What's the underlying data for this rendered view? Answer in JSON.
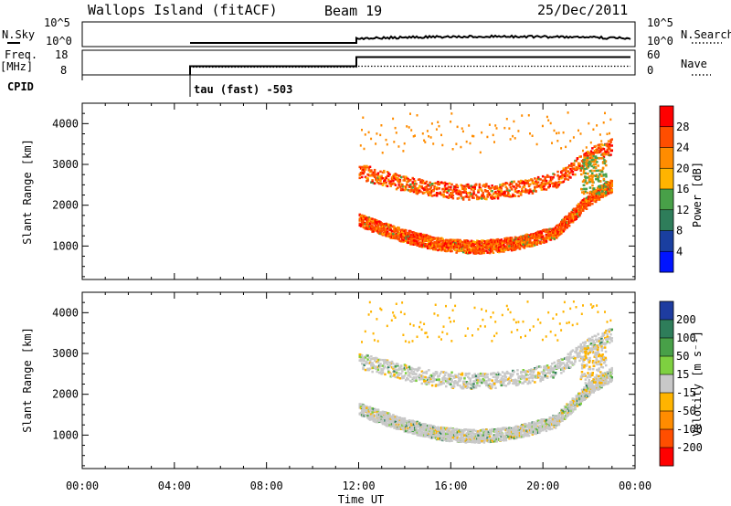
{
  "header": {
    "station": "Wallops Island (fitACF)",
    "beam": "Beam 19",
    "date": "25/Dec/2011"
  },
  "top_panels": {
    "nsky_label": "N.Sky",
    "nsky_ticks": [
      "10^5",
      "10^0"
    ],
    "nsearch_label": "N.Search",
    "nsearch_ticks": [
      "10^5",
      "10^0"
    ],
    "freq_label": "Freq.",
    "freq_unit": "[MHz]",
    "freq_ticks": [
      "18",
      "8"
    ],
    "nave_label": "Nave",
    "nave_ticks": [
      "60",
      "0"
    ],
    "cpid_label": "CPID",
    "cpid_text": "tau (fast) -503"
  },
  "chart_data": [
    {
      "type": "heatmap",
      "panel": "power",
      "ylabel": "Slant Range [km]",
      "xlabel": "Time UT",
      "x_ticks": [
        "00:00",
        "04:00",
        "08:00",
        "12:00",
        "16:00",
        "20:00",
        "00:00"
      ],
      "x_range_hours": [
        0,
        24
      ],
      "y_ticks": [
        1000,
        2000,
        3000,
        4000
      ],
      "y_range_km": [
        180,
        4500
      ],
      "colorbar_label": "Power [dB]",
      "colorbar_ticks": [
        "28",
        "24",
        "20",
        "16",
        "12",
        "8",
        "4"
      ],
      "colors_high_to_low": [
        "#ff0000",
        "#ff4e00",
        "#ff8c00",
        "#ffb400",
        "#48a048",
        "#2e7d5a",
        "#1a3fa0",
        "#0014ff"
      ],
      "data_coverage_hours": [
        12,
        24
      ]
    },
    {
      "type": "heatmap",
      "panel": "velocity",
      "ylabel": "Slant Range [km]",
      "xlabel": "Time UT",
      "x_ticks": [
        "00:00",
        "04:00",
        "08:00",
        "12:00",
        "16:00",
        "20:00",
        "00:00"
      ],
      "x_range_hours": [
        0,
        24
      ],
      "y_ticks": [
        1000,
        2000,
        3000,
        4000
      ],
      "y_range_km": [
        180,
        4500
      ],
      "colorbar_label": "Velocity [m s⁻¹]",
      "colorbar_ticks": [
        "200",
        "100",
        "50",
        "15",
        "-15",
        "-50",
        "-100",
        "-200"
      ],
      "colors_high_to_low": [
        "#1e3ca0",
        "#2e7d5a",
        "#48a048",
        "#7ed040",
        "#c8c8c8",
        "#ffb400",
        "#ff8c00",
        "#ff4e00",
        "#ff0000"
      ],
      "data_coverage_hours": [
        12,
        24
      ]
    }
  ]
}
